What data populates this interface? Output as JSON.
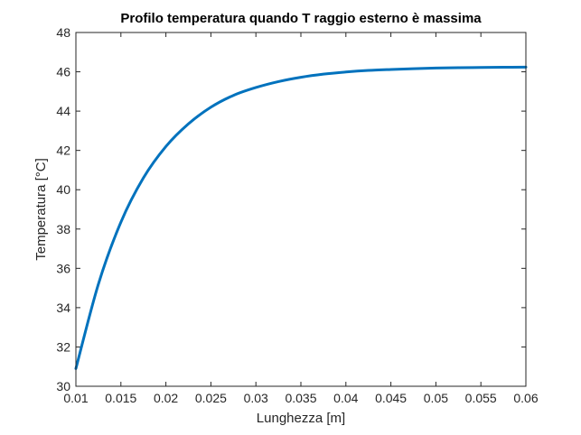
{
  "chart_data": {
    "type": "line",
    "title": "Profilo temperatura quando T raggio esterno è massima",
    "xlabel": "Lunghezza [m]",
    "ylabel": "Temperatura [°C]",
    "xlim": [
      0.01,
      0.06
    ],
    "ylim": [
      30,
      48
    ],
    "xticks": [
      0.01,
      0.015,
      0.02,
      0.025,
      0.03,
      0.035,
      0.04,
      0.045,
      0.05,
      0.055,
      0.06
    ],
    "xtick_labels": [
      "0.01",
      "0.015",
      "0.02",
      "0.025",
      "0.03",
      "0.035",
      "0.04",
      "0.045",
      "0.05",
      "0.055",
      "0.06"
    ],
    "yticks": [
      30,
      32,
      34,
      36,
      38,
      40,
      42,
      44,
      46,
      48
    ],
    "ytick_labels": [
      "30",
      "32",
      "34",
      "36",
      "38",
      "40",
      "42",
      "44",
      "46",
      "48"
    ],
    "grid": false,
    "box": true,
    "series": [
      {
        "color": "#0072BD",
        "x": [
          0.01,
          0.0125,
          0.015,
          0.0175,
          0.02,
          0.0225,
          0.025,
          0.0275,
          0.03,
          0.0325,
          0.035,
          0.0375,
          0.04,
          0.0425,
          0.045,
          0.0475,
          0.05,
          0.0525,
          0.055,
          0.0575,
          0.06
        ],
        "y": [
          30.9,
          35.2,
          38.35,
          40.6,
          42.2,
          43.35,
          44.2,
          44.8,
          45.2,
          45.5,
          45.72,
          45.88,
          45.99,
          46.07,
          46.12,
          46.16,
          46.19,
          46.21,
          46.22,
          46.23,
          46.24
        ]
      }
    ]
  }
}
